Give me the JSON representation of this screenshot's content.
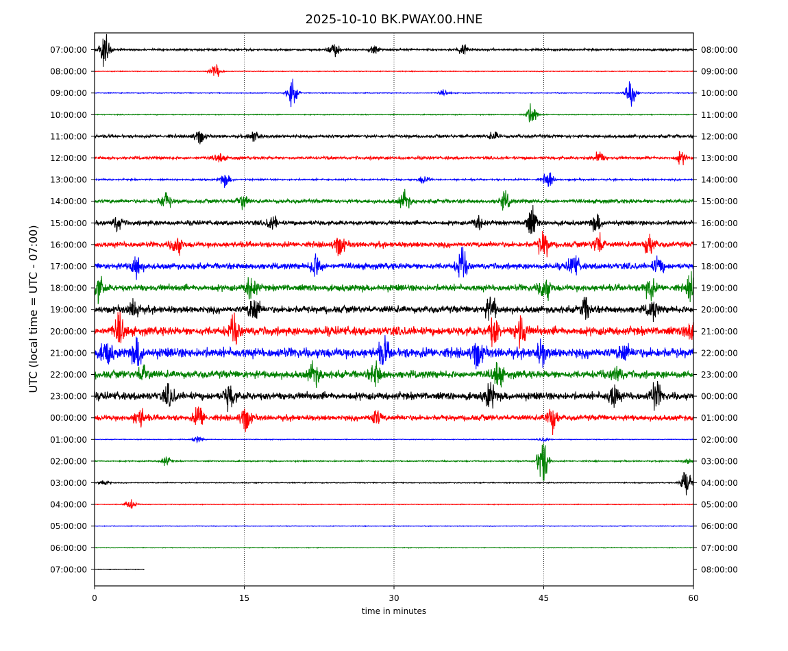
{
  "chart_data": {
    "type": "line",
    "title": "2025-10-10 BK.PWAY.00.HNE",
    "xlabel": "time in minutes",
    "ylabel": "UTC (local time = UTC - 07:00)",
    "xlim": [
      0,
      60
    ],
    "x_ticks": [
      "0",
      "15",
      "30",
      "45",
      "60"
    ],
    "x_tick_values": [
      0,
      15,
      30,
      45,
      60
    ],
    "vertical_grid_minutes": [
      15,
      30,
      45
    ],
    "grid": "dotted vertical lines at 15, 30, 45",
    "left_tick_labels": [
      "07:00:00",
      "08:00:00",
      "09:00:00",
      "10:00:00",
      "11:00:00",
      "12:00:00",
      "13:00:00",
      "14:00:00",
      "15:00:00",
      "16:00:00",
      "17:00:00",
      "18:00:00",
      "19:00:00",
      "20:00:00",
      "21:00:00",
      "22:00:00",
      "23:00:00",
      "00:00:00",
      "01:00:00",
      "02:00:00",
      "03:00:00",
      "04:00:00",
      "05:00:00",
      "06:00:00",
      "07:00:00"
    ],
    "right_tick_labels": [
      "08:00:00",
      "09:00:00",
      "10:00:00",
      "11:00:00",
      "12:00:00",
      "13:00:00",
      "14:00:00",
      "15:00:00",
      "16:00:00",
      "17:00:00",
      "18:00:00",
      "19:00:00",
      "20:00:00",
      "21:00:00",
      "22:00:00",
      "23:00:00",
      "00:00:00",
      "01:00:00",
      "02:00:00",
      "03:00:00",
      "04:00:00",
      "05:00:00",
      "06:00:00",
      "07:00:00",
      "08:00:00"
    ],
    "color_cycle": [
      "#000000",
      "#ff0000",
      "#0000ff",
      "#008000"
    ],
    "traces": [
      {
        "noise": 0.2,
        "bursts": [
          [
            1.0,
            2.6
          ],
          [
            24,
            1.2
          ],
          [
            37,
            1.0
          ],
          [
            28,
            0.7
          ]
        ],
        "end": 60
      },
      {
        "noise": 0.07,
        "bursts": [
          [
            12.1,
            1.3
          ]
        ],
        "end": 60
      },
      {
        "noise": 0.08,
        "bursts": [
          [
            19.8,
            2.0
          ],
          [
            53.7,
            2.5
          ],
          [
            35,
            0.4
          ]
        ],
        "end": 60
      },
      {
        "noise": 0.08,
        "bursts": [
          [
            43.8,
            1.9
          ]
        ],
        "end": 60
      },
      {
        "noise": 0.3,
        "bursts": [
          [
            10.5,
            1.2
          ],
          [
            16,
            0.9
          ],
          [
            40,
            0.6
          ]
        ],
        "end": 60
      },
      {
        "noise": 0.28,
        "bursts": [
          [
            12.5,
            0.7
          ],
          [
            50.5,
            1.0
          ],
          [
            58.8,
            0.9
          ]
        ],
        "end": 60
      },
      {
        "noise": 0.16,
        "bursts": [
          [
            13.1,
            1.0
          ],
          [
            33,
            0.7
          ],
          [
            45.4,
            1.2
          ]
        ],
        "end": 60
      },
      {
        "noise": 0.38,
        "bursts": [
          [
            7.1,
            1.4
          ],
          [
            14.8,
            1.2
          ],
          [
            31.1,
            1.6
          ],
          [
            41.1,
            1.3
          ]
        ],
        "end": 60
      },
      {
        "noise": 0.45,
        "bursts": [
          [
            2.3,
            1.1
          ],
          [
            17.8,
            1.0
          ],
          [
            43.8,
            2.4
          ],
          [
            50.3,
            1.3
          ],
          [
            38.5,
            1.1
          ]
        ],
        "end": 60
      },
      {
        "noise": 0.55,
        "bursts": [
          [
            8.2,
            1.6
          ],
          [
            24.5,
            1.7
          ],
          [
            45,
            2.1
          ],
          [
            50.5,
            1.7
          ],
          [
            55.6,
            1.6
          ]
        ],
        "end": 60
      },
      {
        "noise": 0.6,
        "bursts": [
          [
            4.2,
            1.9
          ],
          [
            22.2,
            2.0
          ],
          [
            36.8,
            2.4
          ],
          [
            48,
            1.8
          ],
          [
            56.5,
            1.4
          ]
        ],
        "end": 60
      },
      {
        "noise": 0.65,
        "bursts": [
          [
            0.4,
            1.7
          ],
          [
            15.7,
            2.2
          ],
          [
            45.1,
            2.0
          ],
          [
            55.6,
            1.6
          ],
          [
            59.8,
            1.8
          ]
        ],
        "end": 60
      },
      {
        "noise": 0.7,
        "bursts": [
          [
            4,
            1.4
          ],
          [
            16,
            2.2
          ],
          [
            39.7,
            2.0
          ],
          [
            49.2,
            1.7
          ],
          [
            55.9,
            1.4
          ]
        ],
        "end": 60
      },
      {
        "noise": 0.85,
        "bursts": [
          [
            2.5,
            2.2
          ],
          [
            14,
            1.9
          ],
          [
            40,
            2.2
          ],
          [
            42.7,
            2.5
          ],
          [
            59.7,
            2.0
          ]
        ],
        "end": 60
      },
      {
        "noise": 0.95,
        "bursts": [
          [
            1.2,
            1.9
          ],
          [
            4.3,
            2.2
          ],
          [
            29,
            1.9
          ],
          [
            38.3,
            2.2
          ],
          [
            44.8,
            1.7
          ],
          [
            53,
            1.4
          ]
        ],
        "end": 60
      },
      {
        "noise": 0.75,
        "bursts": [
          [
            4.9,
            1.4
          ],
          [
            22,
            1.9
          ],
          [
            28.2,
            1.8
          ],
          [
            40.4,
            1.9
          ],
          [
            52.3,
            1.2
          ]
        ],
        "end": 60
      },
      {
        "noise": 0.75,
        "bursts": [
          [
            7.5,
            1.6
          ],
          [
            13.5,
            1.9
          ],
          [
            39.6,
            2.0
          ],
          [
            52,
            1.7
          ],
          [
            56.2,
            2.2
          ]
        ],
        "end": 60
      },
      {
        "noise": 0.55,
        "bursts": [
          [
            4.5,
            1.6
          ],
          [
            10.5,
            1.8
          ],
          [
            15.1,
            2.1
          ],
          [
            28.2,
            1.2
          ],
          [
            45.8,
            2.0
          ]
        ],
        "end": 60
      },
      {
        "noise": 0.07,
        "bursts": [
          [
            10.3,
            0.5
          ],
          [
            45,
            0.3
          ]
        ],
        "end": 60
      },
      {
        "noise": 0.12,
        "bursts": [
          [
            7.1,
            0.7
          ],
          [
            44.9,
            4.1
          ],
          [
            59.4,
            0.4
          ]
        ],
        "end": 60
      },
      {
        "noise": 0.09,
        "bursts": [
          [
            1.0,
            0.5
          ],
          [
            59.3,
            2.6
          ]
        ],
        "end": 60
      },
      {
        "noise": 0.07,
        "bursts": [
          [
            3.6,
            0.9
          ]
        ],
        "end": 60
      },
      {
        "noise": 0.06,
        "bursts": [],
        "end": 60
      },
      {
        "noise": 0.06,
        "bursts": [],
        "end": 60
      },
      {
        "noise": 0.06,
        "bursts": [],
        "end": 5.0
      }
    ]
  }
}
